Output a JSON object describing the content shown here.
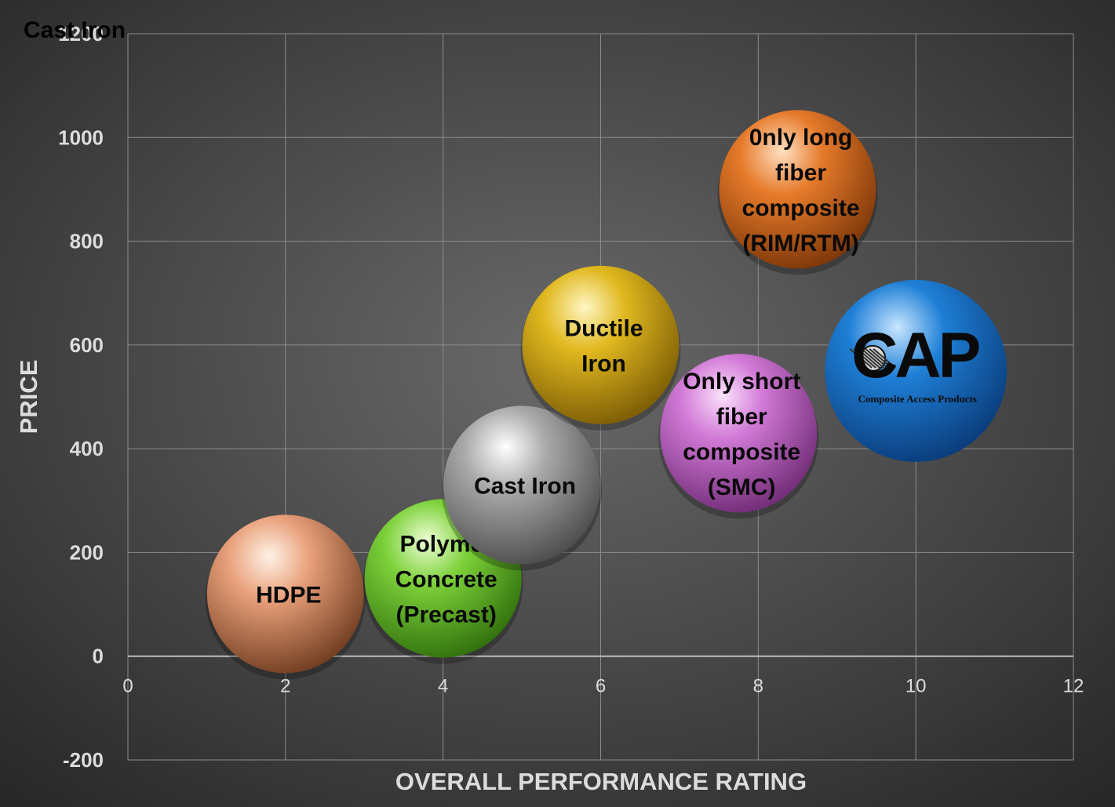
{
  "chart_data": {
    "type": "bubble",
    "title": "Cast Iron",
    "xlabel": "OVERALL PERFORMANCE RATING",
    "ylabel": "PRICE",
    "xlim": [
      0,
      12
    ],
    "ylim": [
      -200,
      1200
    ],
    "x_ticks": [
      0,
      2,
      4,
      6,
      8,
      10,
      12
    ],
    "y_ticks": [
      -200,
      0,
      200,
      400,
      600,
      800,
      1000,
      1200
    ],
    "grid": true,
    "colors": {
      "background_light": "#6a6a6a",
      "background_dark": "#262626",
      "grid": "#8c8c8c",
      "axis_text": "#dcdcdc",
      "title_text": "#000000",
      "bubble_label": "#0a0a0a",
      "logo_text": "#0a0a0a"
    },
    "series": [
      {
        "label_lines": [
          "HDPE"
        ],
        "x": 2,
        "y": 120,
        "color": "#e8a07a",
        "highlight": "#fff2e6",
        "shade": "#6e3a1e"
      },
      {
        "label_lines": [
          "Polymer",
          "Concrete",
          "(Precast)"
        ],
        "x": 4,
        "y": 150,
        "color": "#7dd13a",
        "highlight": "#eeffd6",
        "shade": "#2f6e0c"
      },
      {
        "label_lines": [
          "Cast Iron"
        ],
        "x": 5,
        "y": 330,
        "color": "#a9a9a9",
        "highlight": "#ffffff",
        "shade": "#4a4a4a"
      },
      {
        "label_lines": [
          "Ductile",
          "Iron"
        ],
        "x": 6,
        "y": 600,
        "color": "#e0b81e",
        "highlight": "#fff6c4",
        "shade": "#7a5a05"
      },
      {
        "label_lines": [
          "Only short",
          "fiber",
          "composite",
          "(SMC)"
        ],
        "x": 7.75,
        "y": 430,
        "color": "#d179d6",
        "highlight": "#fbe2fc",
        "shade": "#6e2a74"
      },
      {
        "label_lines": [
          "0nly long",
          "fiber",
          "composite",
          "(RIM/RTM)"
        ],
        "x": 8.5,
        "y": 900,
        "color": "#e67a2a",
        "highlight": "#ffe0c2",
        "shade": "#7a3508"
      },
      {
        "label_lines": [],
        "x": 10,
        "y": 550,
        "color": "#1e7fd6",
        "highlight": "#c8e6ff",
        "shade": "#0a3a78",
        "logo": "CAP",
        "logo_caption": "Composite Access Products",
        "logo_icon": "woven-fiber-icon"
      }
    ]
  }
}
